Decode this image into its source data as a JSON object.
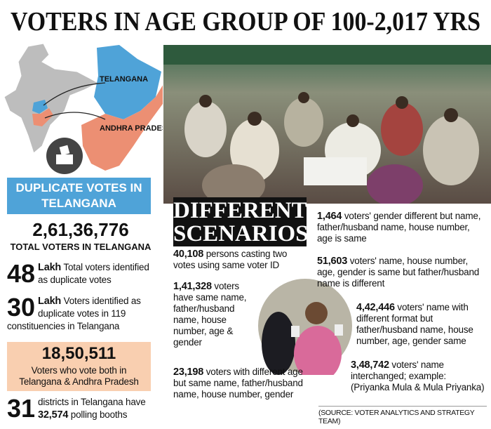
{
  "title": "VOTERS IN AGE GROUP OF 100-2,017 YRS",
  "map": {
    "labels": [
      "TELANGANA",
      "ANDHRA PRADESH"
    ]
  },
  "left": {
    "heading": "DUPLICATE VOTES IN TELANGANA",
    "total": {
      "number": "2,61,36,776",
      "label": "TOTAL VOTERS IN TELANGANA"
    },
    "facts": [
      {
        "number": "48",
        "unit": "Lakh",
        "text": "Total voters identified as duplicate votes"
      },
      {
        "number": "30",
        "unit": "Lakh",
        "text": "Voters identified as duplicate votes in 119 constituencies in Telangana"
      }
    ],
    "both_states": {
      "number": "18,50,511",
      "text": "Voters who vote both in Telangana & Andhra Pradesh"
    },
    "districts": {
      "number": "31",
      "text": "districts in Telangana have",
      "booths": "32,574",
      "text2": "polling booths"
    }
  },
  "scenarios": {
    "heading": [
      "DIFFERENT",
      "SCENARIOS"
    ],
    "items": [
      {
        "number": "40,108",
        "text": "persons casting two votes using same voter ID"
      },
      {
        "number": "1,41,328",
        "text": "voters have same name, father/husband name, house number, age & gender"
      },
      {
        "number": "23,198",
        "text": "voters with different age but same name, father/husband name, house number, gender"
      },
      {
        "number": "1,464",
        "text": "voters' gender different but name, father/husband name, house number, age is same"
      },
      {
        "number": "51,603",
        "text": "voters' name, house number, age, gender is same but father/husband name is different"
      },
      {
        "number": "4,42,446",
        "text": "voters' name with different format but father/husband name, house number, age, gender same"
      },
      {
        "number": "3,48,742",
        "text": "voters' name interchanged; example: (Priyanka Mula & Mula Priyanka)"
      }
    ]
  },
  "source": "(SOURCE: VOTER ANALYTICS AND STRATEGY TEAM)"
}
